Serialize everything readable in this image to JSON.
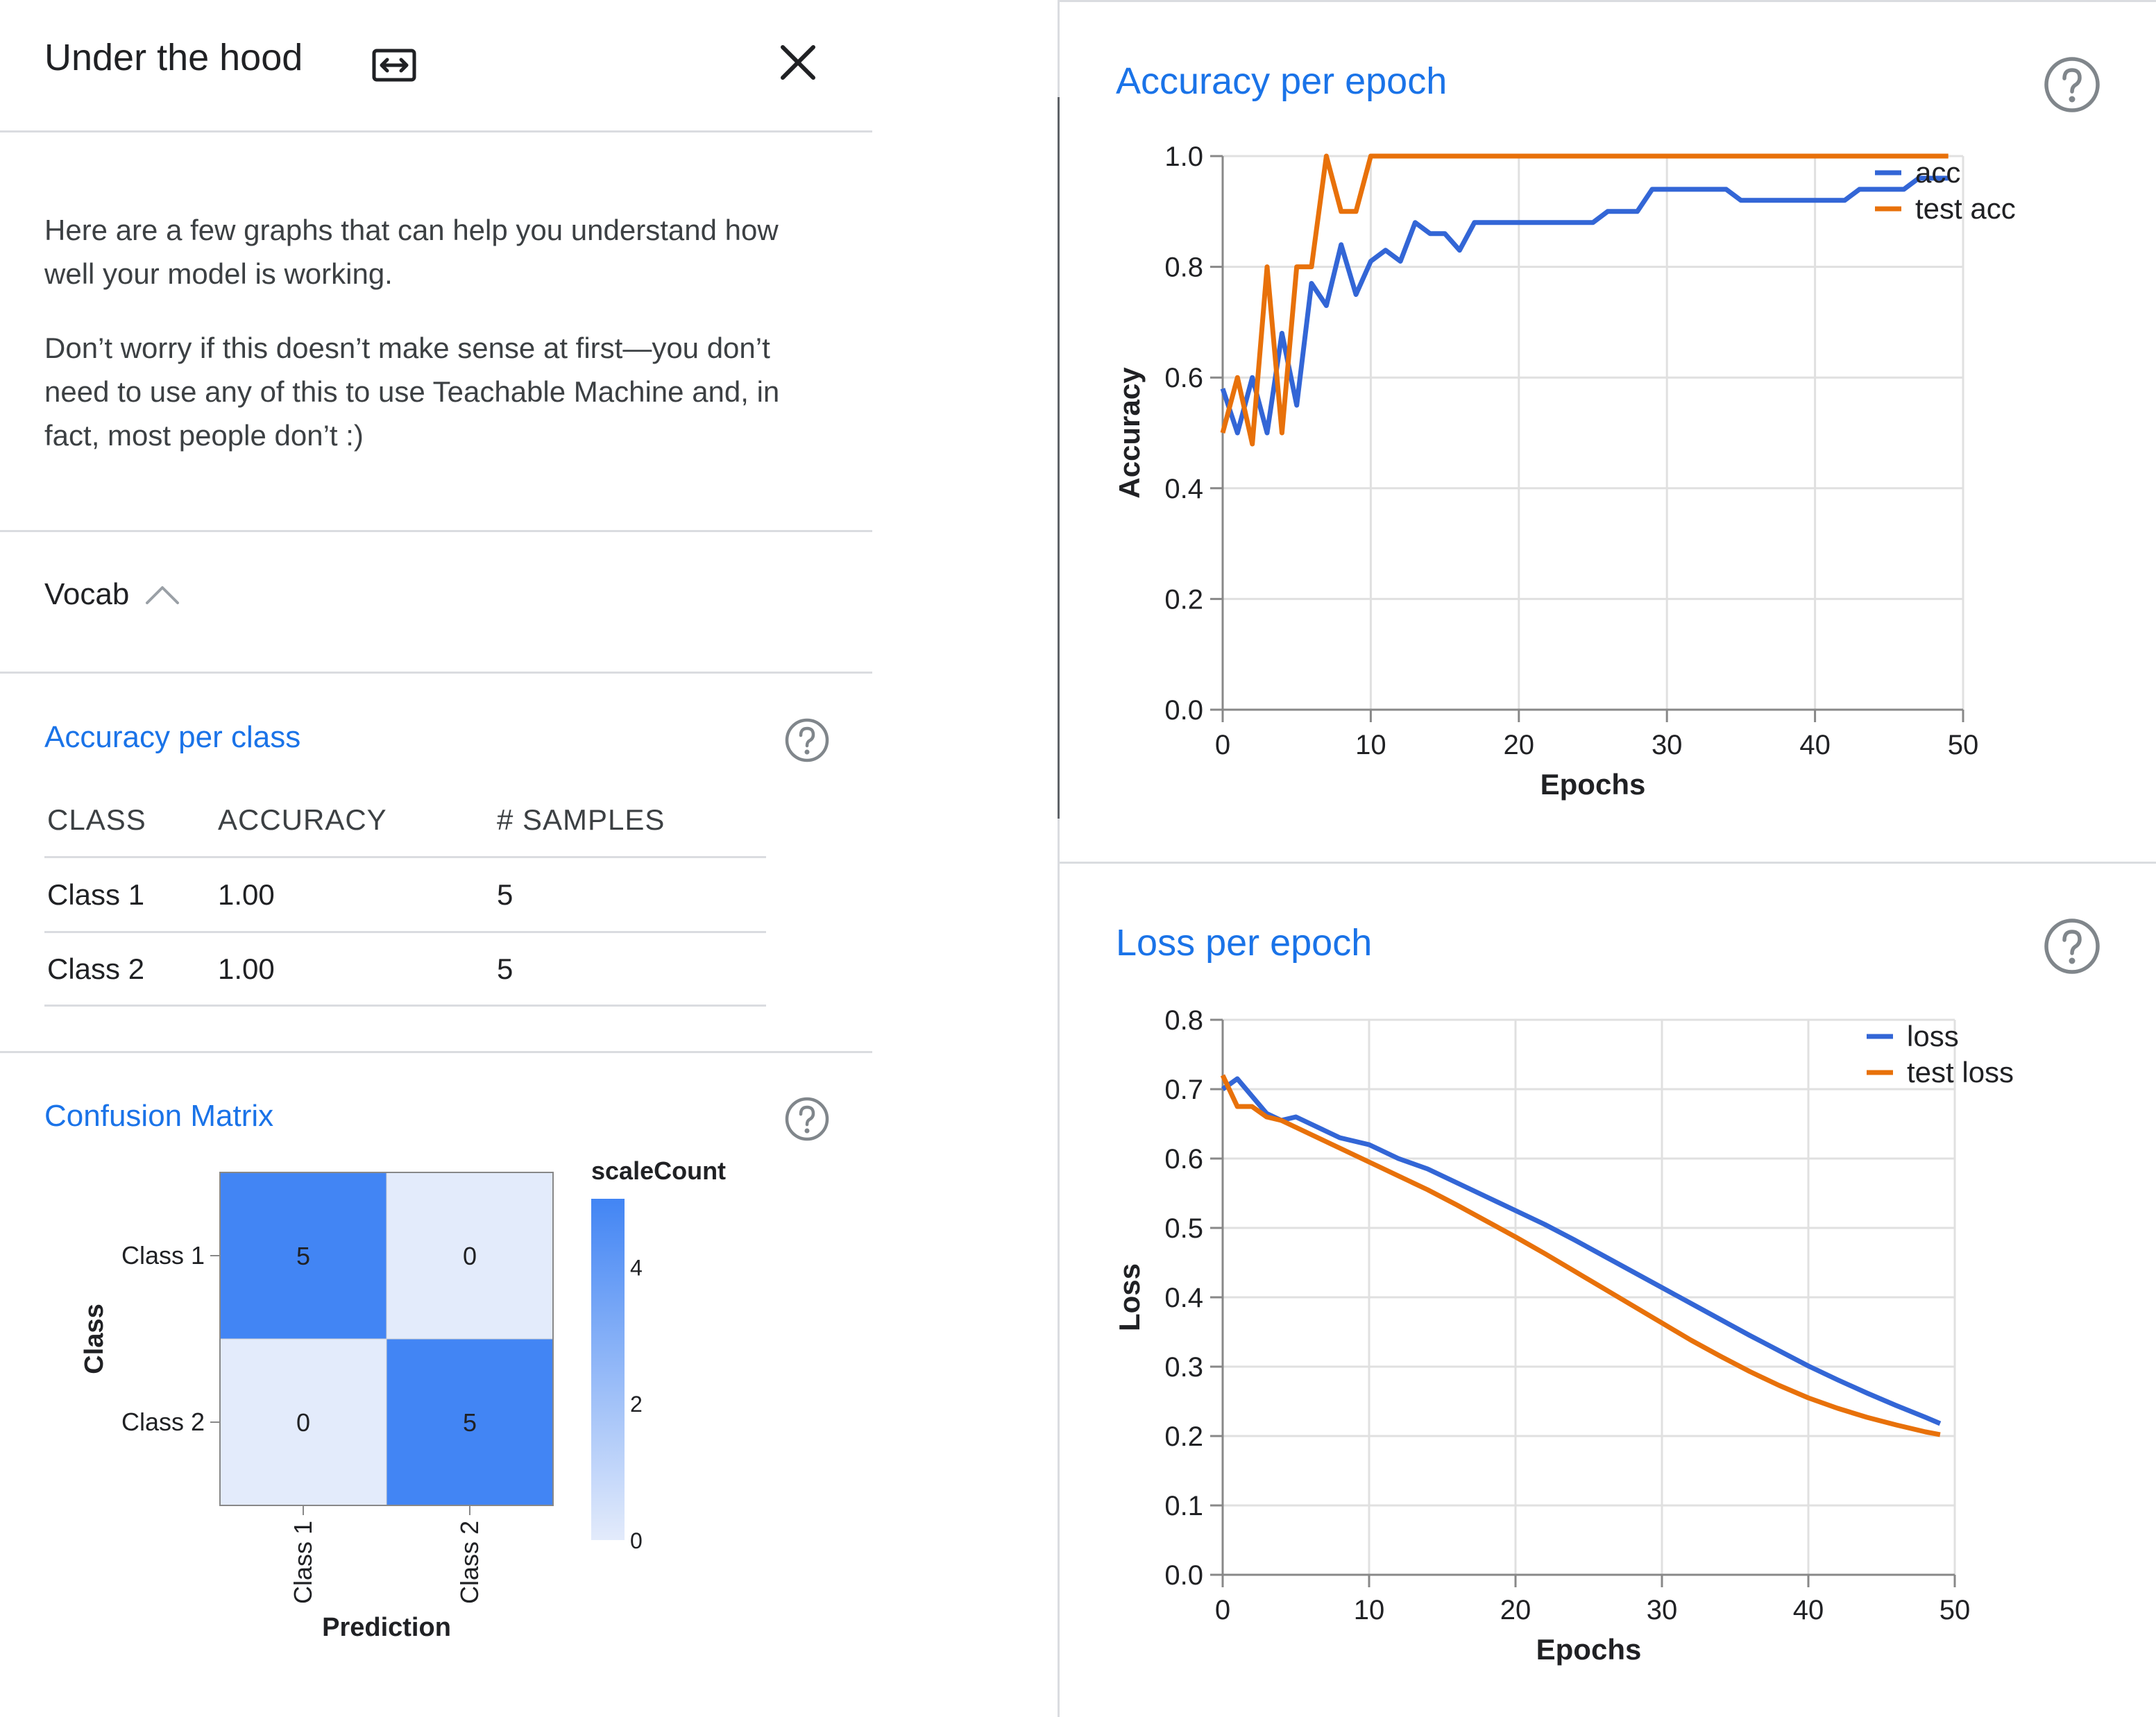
{
  "header": {
    "title": "Under the hood",
    "expand_icon": "expand-horizontal-icon",
    "close_icon": "close-icon"
  },
  "intro": {
    "p1": "Here are a few graphs that can help you understand how well your model is working.",
    "p2": "Don’t worry if this doesn’t make sense at first—you don’t need to use any of this to use Teachable Machine and, in fact, most people don’t :)"
  },
  "vocab": {
    "label": "Vocab",
    "icon": "chevron-up-icon"
  },
  "accuracy_per_class": {
    "title": "Accuracy per class",
    "headers": [
      "CLASS",
      "ACCURACY",
      "# SAMPLES"
    ],
    "rows": [
      [
        "Class 1",
        "1.00",
        "5"
      ],
      [
        "Class 2",
        "1.00",
        "5"
      ]
    ]
  },
  "colors": {
    "accent": "#1a73e8",
    "series_blue": "#3366d6",
    "series_orange": "#e8710a",
    "matrix_high": "#4285f4",
    "matrix_low": "#e3ebfb"
  },
  "chart_data": [
    {
      "id": "confusion",
      "type": "heatmap",
      "title": "Confusion Matrix",
      "rows": [
        "Class 1",
        "Class 2"
      ],
      "cols": [
        "Class 1",
        "Class 2"
      ],
      "values": [
        [
          5,
          0
        ],
        [
          0,
          5
        ]
      ],
      "xlabel": "Prediction",
      "ylabel": "Class",
      "legend_title": "scaleCount",
      "legend_ticks": [
        0,
        2,
        4
      ]
    },
    {
      "id": "accuracy",
      "type": "line",
      "title": "Accuracy per epoch",
      "xlabel": "Epochs",
      "ylabel": "Accuracy",
      "xlim": [
        0,
        50
      ],
      "ylim": [
        0,
        1
      ],
      "xticks": [
        0,
        10,
        20,
        30,
        40,
        50
      ],
      "yticks": [
        0.0,
        0.2,
        0.4,
        0.6,
        0.8,
        1.0
      ],
      "ytick_labels": [
        "0.0",
        "0.2",
        "0.4",
        "0.6",
        "0.8",
        "1.0"
      ],
      "grid": true,
      "legend": "right",
      "series": [
        {
          "name": "acc",
          "color": "#3366d6",
          "x": [
            0,
            1,
            2,
            3,
            4,
            5,
            6,
            7,
            8,
            9,
            10,
            11,
            12,
            13,
            14,
            15,
            16,
            17,
            18,
            19,
            20,
            21,
            22,
            23,
            24,
            25,
            26,
            27,
            28,
            29,
            30,
            31,
            32,
            33,
            34,
            35,
            36,
            37,
            38,
            39,
            40,
            41,
            42,
            43,
            44,
            45,
            46,
            47,
            48,
            49
          ],
          "y": [
            0.58,
            0.5,
            0.6,
            0.5,
            0.68,
            0.55,
            0.77,
            0.73,
            0.84,
            0.75,
            0.81,
            0.83,
            0.81,
            0.88,
            0.86,
            0.86,
            0.83,
            0.88,
            0.88,
            0.88,
            0.88,
            0.88,
            0.88,
            0.88,
            0.88,
            0.88,
            0.9,
            0.9,
            0.9,
            0.94,
            0.94,
            0.94,
            0.94,
            0.94,
            0.94,
            0.92,
            0.92,
            0.92,
            0.92,
            0.92,
            0.92,
            0.92,
            0.92,
            0.94,
            0.94,
            0.94,
            0.94,
            0.96,
            0.96,
            0.96
          ]
        },
        {
          "name": "test acc",
          "color": "#e8710a",
          "x": [
            0,
            1,
            2,
            3,
            4,
            5,
            6,
            7,
            8,
            9,
            10,
            11,
            12,
            13,
            14,
            15,
            16,
            17,
            18,
            19,
            20,
            21,
            22,
            23,
            24,
            25,
            26,
            27,
            28,
            29,
            30,
            31,
            32,
            33,
            34,
            35,
            36,
            37,
            38,
            39,
            40,
            41,
            42,
            43,
            44,
            45,
            46,
            47,
            48,
            49
          ],
          "y": [
            0.5,
            0.6,
            0.48,
            0.8,
            0.5,
            0.8,
            0.8,
            1.0,
            0.9,
            0.9,
            1.0,
            1.0,
            1.0,
            1.0,
            1.0,
            1.0,
            1.0,
            1.0,
            1.0,
            1.0,
            1.0,
            1.0,
            1.0,
            1.0,
            1.0,
            1.0,
            1.0,
            1.0,
            1.0,
            1.0,
            1.0,
            1.0,
            1.0,
            1.0,
            1.0,
            1.0,
            1.0,
            1.0,
            1.0,
            1.0,
            1.0,
            1.0,
            1.0,
            1.0,
            1.0,
            1.0,
            1.0,
            1.0,
            1.0,
            1.0
          ]
        }
      ]
    },
    {
      "id": "loss",
      "type": "line",
      "title": "Loss per epoch",
      "xlabel": "Epochs",
      "ylabel": "Loss",
      "xlim": [
        0,
        50
      ],
      "ylim": [
        0,
        0.8
      ],
      "xticks": [
        0,
        10,
        20,
        30,
        40,
        50
      ],
      "yticks": [
        0.0,
        0.1,
        0.2,
        0.3,
        0.4,
        0.5,
        0.6,
        0.7,
        0.8
      ],
      "ytick_labels": [
        "0.0",
        "0.1",
        "0.2",
        "0.3",
        "0.4",
        "0.5",
        "0.6",
        "0.7",
        "0.8"
      ],
      "grid": true,
      "legend": "right",
      "series": [
        {
          "name": "loss",
          "color": "#3366d6",
          "x": [
            0,
            1,
            2,
            3,
            4,
            5,
            6,
            7,
            8,
            9,
            10,
            12,
            14,
            16,
            18,
            20,
            22,
            24,
            26,
            28,
            30,
            32,
            34,
            36,
            38,
            40,
            42,
            44,
            46,
            48,
            49
          ],
          "y": [
            0.7,
            0.715,
            0.69,
            0.665,
            0.655,
            0.66,
            0.65,
            0.64,
            0.63,
            0.625,
            0.62,
            0.6,
            0.585,
            0.565,
            0.545,
            0.525,
            0.505,
            0.483,
            0.46,
            0.437,
            0.414,
            0.391,
            0.368,
            0.345,
            0.323,
            0.301,
            0.281,
            0.262,
            0.244,
            0.227,
            0.218
          ]
        },
        {
          "name": "test loss",
          "color": "#e8710a",
          "x": [
            0,
            1,
            2,
            3,
            4,
            5,
            6,
            7,
            8,
            9,
            10,
            12,
            14,
            16,
            18,
            20,
            22,
            24,
            26,
            28,
            30,
            32,
            34,
            36,
            38,
            40,
            42,
            44,
            46,
            48,
            49
          ],
          "y": [
            0.72,
            0.675,
            0.675,
            0.66,
            0.655,
            0.645,
            0.635,
            0.625,
            0.615,
            0.605,
            0.595,
            0.575,
            0.555,
            0.533,
            0.51,
            0.487,
            0.463,
            0.438,
            0.413,
            0.388,
            0.363,
            0.338,
            0.315,
            0.293,
            0.273,
            0.255,
            0.24,
            0.227,
            0.216,
            0.206,
            0.202
          ]
        }
      ]
    }
  ]
}
